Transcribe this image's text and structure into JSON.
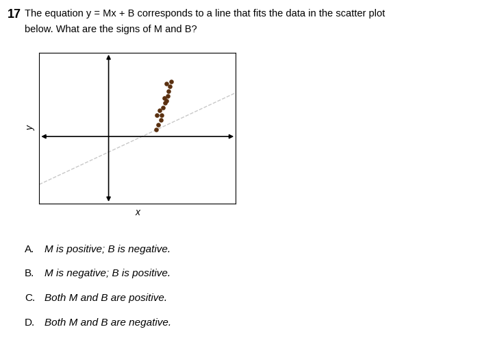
{
  "chart_data": {
    "type": "scatter",
    "title": "17",
    "subtitle": [
      "The equation y = Mx + B corresponds to a line that fits the data in the scatter plot",
      "below. What are the signs of M and B?"
    ],
    "xlabel": "x",
    "ylabel": "y",
    "xlim": [
      -3.0,
      5.5
    ],
    "ylim": [
      -2.8,
      3.5
    ],
    "xticks": [],
    "yticks": [],
    "tick_labels": false,
    "grid": false,
    "series": [
      {
        "type": "scatter",
        "color": "#5a3010",
        "x": [
          2.05,
          2.15,
          2.25,
          2.1,
          2.3,
          2.2,
          2.35,
          2.45,
          2.5,
          2.4,
          2.55,
          2.6,
          2.65,
          2.5,
          2.7
        ],
        "values": [
          0.3,
          0.5,
          0.7,
          0.9,
          0.9,
          1.1,
          1.2,
          1.4,
          1.5,
          1.6,
          1.7,
          1.9,
          2.1,
          2.2,
          2.3
        ]
      }
    ],
    "trend": {
      "slope": 0.45,
      "intercept": -0.65,
      "color": "#c8c8c8",
      "line_style": "dashed"
    },
    "annotations": [
      {
        "label": "A.",
        "text": "M is positive; B is negative."
      },
      {
        "label": "B.",
        "text": "M is negative; B is positive."
      },
      {
        "label": "C.",
        "text": "Both M and B are positive."
      },
      {
        "label": "D.",
        "text": "Both M and B are negative."
      }
    ]
  }
}
